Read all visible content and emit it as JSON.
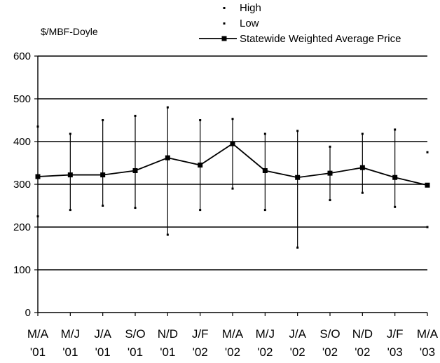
{
  "chart_data": {
    "type": "line",
    "unit_label": "$/MBF-Doyle",
    "categories": [
      [
        "M/A",
        "'01"
      ],
      [
        "M/J",
        "'01"
      ],
      [
        "J/A",
        "'01"
      ],
      [
        "S/O",
        "'01"
      ],
      [
        "N/D",
        "'01"
      ],
      [
        "J/F",
        "'02"
      ],
      [
        "M/A",
        "'02"
      ],
      [
        "M/J",
        "'02"
      ],
      [
        "J/A",
        "'02"
      ],
      [
        "S/O",
        "'02"
      ],
      [
        "N/D",
        "'02"
      ],
      [
        "J/F",
        "'03"
      ],
      [
        "M/A",
        "'03"
      ]
    ],
    "series": [
      {
        "name": "High",
        "values": [
          435,
          418,
          450,
          460,
          480,
          450,
          453,
          418,
          425,
          388,
          418,
          428,
          375
        ]
      },
      {
        "name": "Low",
        "values": [
          225,
          240,
          250,
          245,
          182,
          240,
          290,
          240,
          152,
          263,
          280,
          247,
          200
        ]
      },
      {
        "name": "Statewide Weighted Average Price",
        "values": [
          318,
          322,
          322,
          332,
          362,
          345,
          395,
          332,
          316,
          326,
          339,
          316,
          298
        ]
      }
    ],
    "yticks": [
      0,
      100,
      200,
      300,
      400,
      500,
      600
    ],
    "ylim": [
      0,
      600
    ],
    "grid": "horizontal",
    "legend_position": "top-right"
  }
}
